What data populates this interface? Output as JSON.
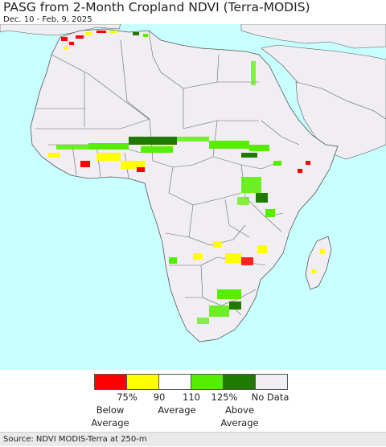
{
  "header": {
    "title": "PASG from 2-Month Cropland NDVI (Terra-MODIS)",
    "date_range": "Dec. 10 - Feb. 9, 2025"
  },
  "legend": {
    "swatches": [
      {
        "color": "#ff0000",
        "name": "red"
      },
      {
        "color": "#ffff00",
        "name": "yellow"
      },
      {
        "color": "#ffffff",
        "name": "white"
      },
      {
        "color": "#55ee00",
        "name": "light-green"
      },
      {
        "color": "#207a00",
        "name": "dark-green"
      },
      {
        "color": "#f0eef2",
        "name": "no-data-grey"
      }
    ],
    "ticks": [
      "75%",
      "90",
      "110",
      "125%",
      "No Data"
    ],
    "labels": {
      "below_line1": "Below",
      "below_line2": "Average",
      "average": "Average",
      "above_line1": "Above",
      "above_line2": "Average"
    }
  },
  "colors": {
    "ocean": "#c8ffff",
    "land": "#f0eef2",
    "border": "#555555"
  },
  "footer": {
    "source": "Source: NDVI MODIS-Terra at 250-m"
  }
}
